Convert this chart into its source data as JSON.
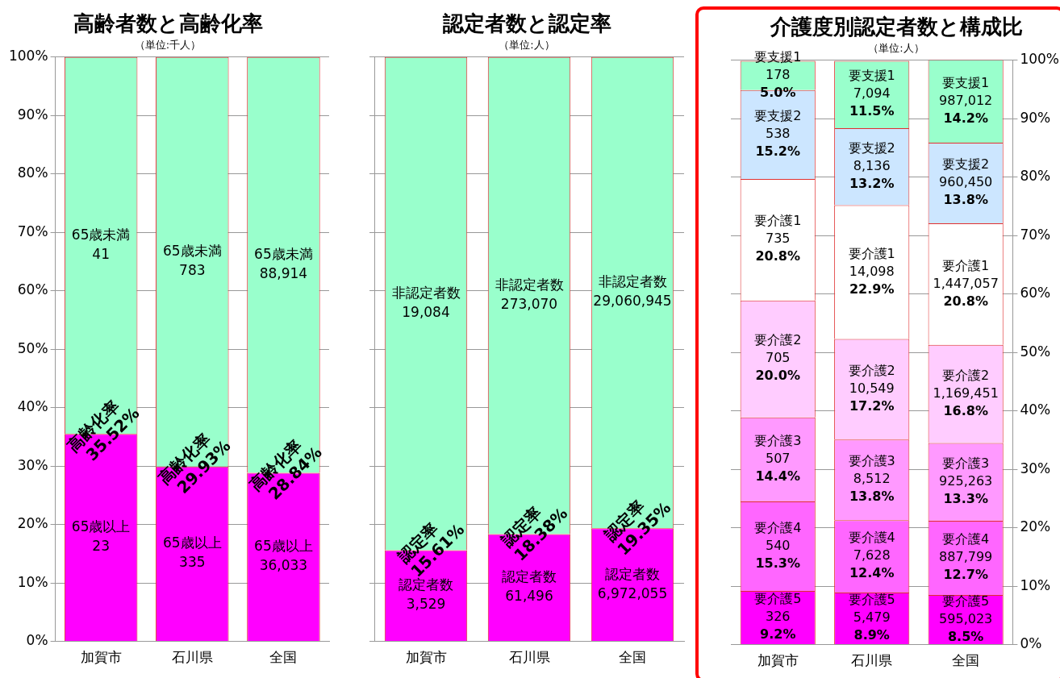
{
  "chart_data": [
    {
      "type": "bar",
      "title": "高齢者数と高齢化率",
      "subtitle": "（単位:千人）",
      "categories": [
        "加賀市",
        "石川県",
        "全国"
      ],
      "stacked": true,
      "grid": "y",
      "ylim": [
        0,
        100
      ],
      "yticks": [
        {
          "value": 0,
          "label": "0%"
        },
        {
          "value": 10,
          "label": "10%"
        },
        {
          "value": 20,
          "label": "20%"
        },
        {
          "value": 30,
          "label": "30%"
        },
        {
          "value": 40,
          "label": "40%"
        },
        {
          "value": 50,
          "label": "50%"
        },
        {
          "value": 60,
          "label": "60%"
        },
        {
          "value": 70,
          "label": "70%"
        },
        {
          "value": 80,
          "label": "80%"
        },
        {
          "value": 90,
          "label": "90%"
        },
        {
          "value": 100,
          "label": "100%"
        }
      ],
      "series": [
        {
          "color": "#ff00ff",
          "values": [
            35.52,
            29.93,
            28.84
          ],
          "value_labels": [
            "高齢化率\n35.52%",
            "高齢化率\n29.93%",
            "高齢化率\n28.84%"
          ]
        },
        {
          "color": "#99ffcc",
          "values": [
            64.48,
            70.07,
            71.16
          ]
        }
      ],
      "annotations": [
        "65歳以上\n23",
        "65歳以上\n335",
        "65歳以上\n36,033",
        "65歳未満\n41",
        "65歳未満\n783",
        "65歳未満\n88,914"
      ]
    },
    {
      "type": "bar",
      "title": "認定者数と認定率",
      "subtitle": "（単位:人）",
      "categories": [
        "加賀市",
        "石川県",
        "全国"
      ],
      "stacked": true,
      "grid": "y",
      "tick_labels": "x",
      "ylim": [
        0,
        100
      ],
      "yticks": [
        0,
        10,
        20,
        30,
        40,
        50,
        60,
        70,
        80,
        90,
        100
      ],
      "series": [
        {
          "color": "#ff00ff",
          "values": [
            15.61,
            18.38,
            19.35
          ],
          "value_labels": [
            "認定率\n15.61%",
            "認定率\n18.38%",
            "認定率\n19.35%"
          ]
        },
        {
          "color": "#99ffcc",
          "values": [
            84.39,
            81.62,
            80.65
          ]
        }
      ],
      "annotations": [
        "認定者数\n3,529",
        "認定者数\n61,496",
        "認定者数\n6,972,055",
        "非認定者数\n19,084",
        "非認定者数\n273,070",
        "非認定者数\n29,060,945"
      ]
    },
    {
      "type": "bar",
      "title": "介護度別認定者数と構成比",
      "subtitle": "（単位:人）",
      "categories": [
        "加賀市",
        "石川県",
        "全国"
      ],
      "stacked": true,
      "grid": "y",
      "y2lim": [
        0,
        100
      ],
      "y2ticks": [
        {
          "value": 0,
          "label": "0%"
        },
        {
          "value": 10,
          "label": "10%"
        },
        {
          "value": 20,
          "label": "20%"
        },
        {
          "value": 30,
          "label": "30%"
        },
        {
          "value": 40,
          "label": "40%"
        },
        {
          "value": 50,
          "label": "50%"
        },
        {
          "value": 60,
          "label": "60%"
        },
        {
          "value": 70,
          "label": "70%"
        },
        {
          "value": 80,
          "label": "80%"
        },
        {
          "value": 90,
          "label": "90%"
        },
        {
          "value": 100,
          "label": "100%"
        }
      ],
      "series": [
        {
          "name": "要介護5",
          "axis": "y2",
          "color": "#ff00ff",
          "values": [
            9.2,
            8.9,
            8.5
          ],
          "value_labels": [
            "326\n9.2%",
            "5,479\n8.9%",
            "595,023\n8.5%"
          ]
        },
        {
          "name": "要介護4",
          "axis": "y2",
          "color": "#ff66ff",
          "values": [
            15.3,
            12.4,
            12.7
          ],
          "value_labels": [
            "540\n15.3%",
            "7,628\n12.4%",
            "887,799\n12.7%"
          ]
        },
        {
          "name": "要介護3",
          "axis": "y2",
          "color": "#ff99ff",
          "values": [
            14.4,
            13.8,
            13.3
          ],
          "value_labels": [
            "507\n14.4%",
            "8,512\n13.8%",
            "925,263\n13.3%"
          ]
        },
        {
          "name": "要介護2",
          "axis": "y2",
          "color": "#ffccff",
          "values": [
            20.0,
            17.2,
            16.8
          ],
          "value_labels": [
            "705\n20.0%",
            "10,549\n17.2%",
            "1,169,451\n16.8%"
          ]
        },
        {
          "name": "要介護1",
          "axis": "y2",
          "color": "#ffffff",
          "values": [
            20.8,
            22.9,
            20.8
          ],
          "value_labels": [
            "735\n20.8%",
            "14,098\n22.9%",
            "1,447,057\n20.8%"
          ]
        },
        {
          "name": "要支援2",
          "axis": "y2",
          "color": "#cce6ff",
          "values": [
            15.2,
            13.2,
            13.8
          ],
          "value_labels": [
            "538\n15.2%",
            "8,136\n13.2%",
            "960,450\n13.8%"
          ]
        },
        {
          "name": "要支援1",
          "axis": "y2",
          "color": "#99ffcc",
          "values": [
            5.0,
            11.5,
            14.2
          ],
          "value_labels": [
            "178\n5.0%",
            "7,094\n11.5%",
            "987,012\n14.2%"
          ]
        }
      ]
    }
  ]
}
